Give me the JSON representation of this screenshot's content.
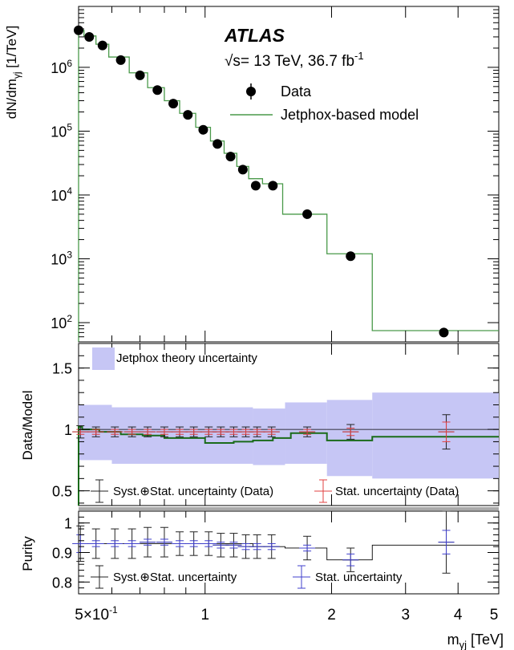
{
  "experiment": "ATLAS",
  "energy_prefix": "√s= 13 TeV, 36.7 fb",
  "energy_superscript": "-1",
  "chart_data": [
    {
      "panel": "main",
      "type": "scatter",
      "ylabel": "dN/dm",
      "ylabel_subscript": "γj",
      "ylabel_units": "[1/TeV]",
      "yscale": "log",
      "xscale": "log",
      "xlim": [
        0.5,
        5.0
      ],
      "ylim": [
        50,
        9000000
      ],
      "y_tick_values": [
        100,
        1000,
        10000,
        100000,
        1000000
      ],
      "y_tick_base": "10",
      "y_tick_exponents": [
        "2",
        "3",
        "4",
        "5",
        "6"
      ],
      "legend": {
        "data_label": "Data",
        "model_label": "Jetphox-based model",
        "placement": "top-right"
      },
      "data_x": [
        0.5,
        0.53,
        0.57,
        0.63,
        0.7,
        0.77,
        0.84,
        0.91,
        0.99,
        1.07,
        1.15,
        1.23,
        1.32,
        1.45,
        1.75,
        2.22,
        3.7
      ],
      "data_y": [
        3800000,
        3000000,
        2200000,
        1300000,
        750000,
        440000,
        270000,
        180000,
        105000,
        63000,
        40000,
        25000,
        14000,
        14000,
        5000,
        1100,
        70
      ],
      "model_edges": [
        0.5,
        0.515,
        0.55,
        0.59,
        0.66,
        0.73,
        0.8,
        0.87,
        0.95,
        1.03,
        1.11,
        1.19,
        1.27,
        1.37,
        1.53,
        1.95,
        2.5,
        5.0
      ],
      "model_values": [
        3800000,
        3100000,
        2300000,
        1450000,
        820000,
        480000,
        300000,
        190000,
        115000,
        70000,
        45000,
        28000,
        18000,
        15000,
        5000,
        1200,
        75
      ]
    },
    {
      "panel": "ratio",
      "type": "scatter",
      "ylabel": "Data/Model",
      "ylim": [
        0.38,
        1.7
      ],
      "y_tick_labels": [
        "0.5",
        "1",
        "1.5"
      ],
      "y_tick_values": [
        0.5,
        1.0,
        1.5
      ],
      "band_label": "Jetphox theory uncertainty",
      "syst_label": "Syst.⊕Stat. uncertainty (Data)",
      "stat_label": "Stat. uncertainty (Data)",
      "band_edges": [
        0.5,
        0.6,
        1.3,
        1.55,
        1.95,
        2.5,
        5.0
      ],
      "band_low": [
        0.75,
        0.72,
        0.71,
        0.72,
        0.62,
        0.6
      ],
      "band_high": [
        1.2,
        1.18,
        1.17,
        1.22,
        1.24,
        1.3
      ],
      "green_edges": [
        0.5,
        0.51,
        0.56,
        0.63,
        0.71,
        0.8,
        0.9,
        1.0,
        1.17,
        1.3,
        1.45,
        1.6,
        1.95,
        2.5,
        5.0
      ],
      "green_values": [
        1.02,
        1.0,
        0.98,
        0.96,
        0.95,
        0.93,
        0.93,
        0.89,
        0.9,
        0.91,
        0.93,
        0.97,
        0.91,
        0.94
      ],
      "ref_line": 1.0,
      "points_x": [
        0.505,
        0.55,
        0.61,
        0.67,
        0.73,
        0.8,
        0.87,
        0.94,
        1.02,
        1.09,
        1.17,
        1.25,
        1.33,
        1.44,
        1.75,
        2.22,
        3.75
      ],
      "points_y": [
        0.98,
        0.98,
        0.98,
        0.98,
        0.98,
        0.98,
        0.98,
        0.98,
        0.98,
        0.98,
        0.98,
        0.98,
        0.98,
        0.98,
        0.98,
        0.98,
        0.98
      ],
      "syst_err": [
        0.05,
        0.04,
        0.04,
        0.04,
        0.04,
        0.04,
        0.04,
        0.04,
        0.04,
        0.04,
        0.04,
        0.04,
        0.04,
        0.04,
        0.04,
        0.06,
        0.14
      ],
      "stat_err": [
        0.02,
        0.02,
        0.02,
        0.02,
        0.02,
        0.02,
        0.02,
        0.02,
        0.02,
        0.02,
        0.02,
        0.02,
        0.02,
        0.02,
        0.02,
        0.03,
        0.08
      ]
    },
    {
      "panel": "purity",
      "type": "scatter",
      "ylabel": "Purity",
      "ylim": [
        0.76,
        1.04
      ],
      "y_tick_labels": [
        "0.8",
        "0.9",
        "1"
      ],
      "y_tick_values": [
        0.8,
        0.9,
        1.0
      ],
      "syst_label": "Syst.⊕Stat. uncertainty",
      "stat_label": "Stat. uncertainty",
      "step_edges": [
        0.5,
        0.8,
        1.3,
        1.55,
        1.95,
        2.5,
        5.0
      ],
      "step_values": [
        0.93,
        0.93,
        0.92,
        0.915,
        0.875,
        0.925
      ],
      "points_x": [
        0.505,
        0.55,
        0.61,
        0.67,
        0.73,
        0.8,
        0.87,
        0.94,
        1.02,
        1.09,
        1.17,
        1.25,
        1.33,
        1.44,
        1.75,
        2.22,
        3.75
      ],
      "points_y": [
        0.93,
        0.93,
        0.93,
        0.93,
        0.935,
        0.935,
        0.93,
        0.93,
        0.93,
        0.925,
        0.925,
        0.92,
        0.92,
        0.92,
        0.915,
        0.875,
        0.935
      ],
      "syst_err": [
        0.06,
        0.05,
        0.05,
        0.05,
        0.05,
        0.05,
        0.04,
        0.04,
        0.04,
        0.04,
        0.04,
        0.04,
        0.04,
        0.04,
        0.04,
        0.04,
        0.105
      ],
      "stat_err": [
        0.03,
        0.01,
        0.01,
        0.01,
        0.01,
        0.01,
        0.01,
        0.01,
        0.01,
        0.01,
        0.01,
        0.01,
        0.01,
        0.01,
        0.01,
        0.02,
        0.04
      ]
    }
  ],
  "x_axis": {
    "label": "m",
    "label_subscript": "γj",
    "label_units": "[TeV]",
    "tick_values": [
      0.5,
      1,
      2,
      3,
      4,
      5
    ],
    "tick_labels": [
      "5×10",
      "1",
      "2",
      "3",
      "4",
      "5"
    ],
    "first_tick_superscript": "-1"
  },
  "colors": {
    "band": "#c6c6f5",
    "model_green": "#4a9a4a",
    "ratio_green": "#1a6b1a",
    "stat_red": "#e04040",
    "stat_blue": "#4040cc",
    "syst_black": "#222222",
    "panel_separator": "#aaaaaa"
  }
}
